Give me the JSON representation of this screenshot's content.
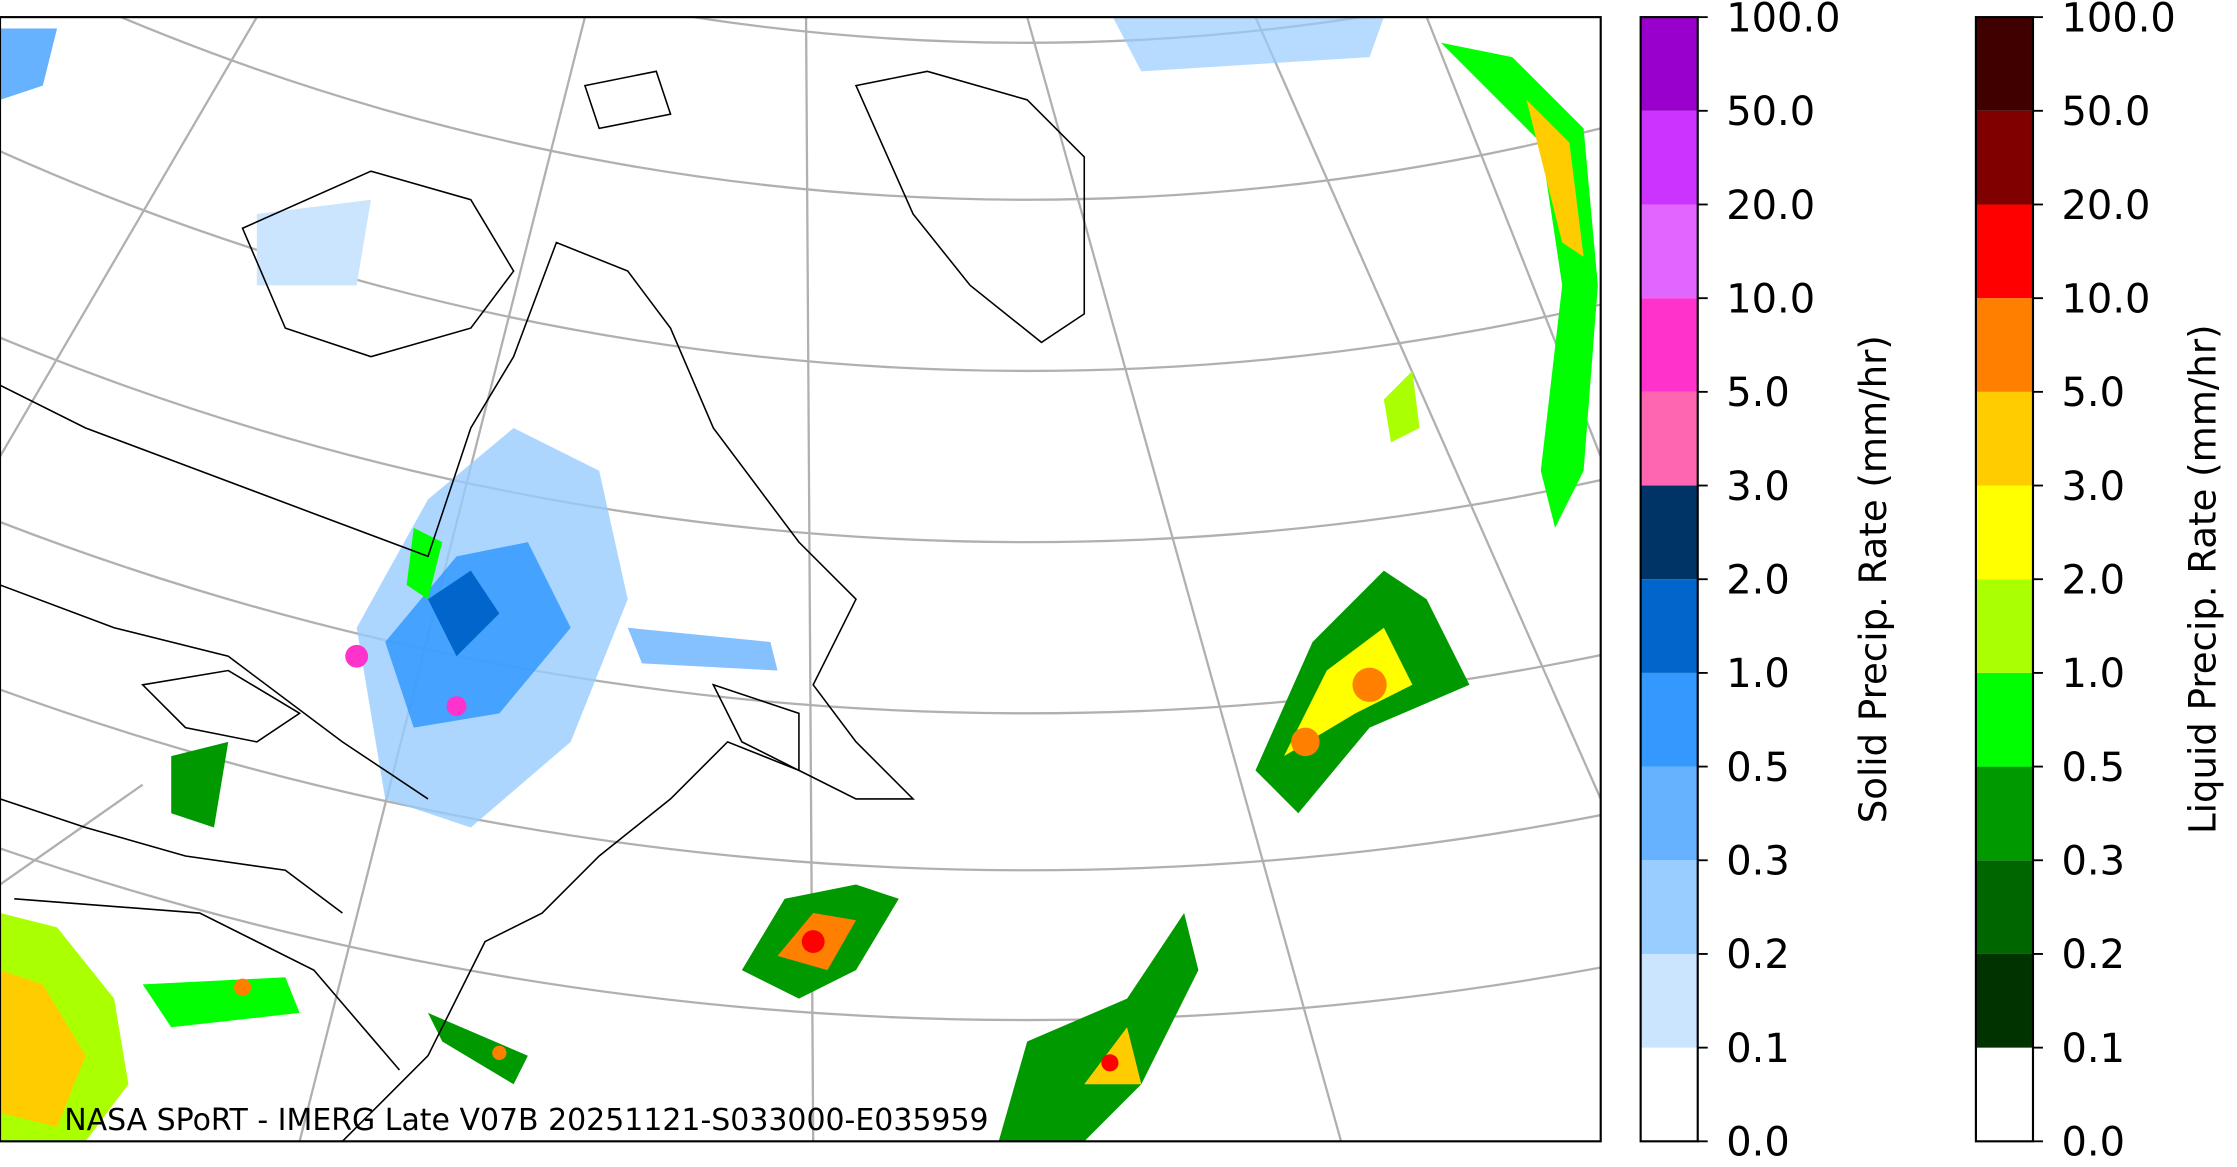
{
  "annotation": "NASA SPoRT - IMERG Late V07B 20251121-S033000-E035959",
  "colorbars": [
    {
      "label": "Solid Precip. Rate (mm/hr)",
      "ticks": [
        {
          "value": 0,
          "label": "0.0"
        },
        {
          "value": 0.1,
          "label": "0.1"
        },
        {
          "value": 0.2,
          "label": "0.2"
        },
        {
          "value": 0.3,
          "label": "0.3"
        },
        {
          "value": 0.5,
          "label": "0.5"
        },
        {
          "value": 1,
          "label": "1.0"
        },
        {
          "value": 2,
          "label": "2.0"
        },
        {
          "value": 3,
          "label": "3.0"
        },
        {
          "value": 5,
          "label": "5.0"
        },
        {
          "value": 10,
          "label": "10.0"
        },
        {
          "value": 20,
          "label": "20.0"
        },
        {
          "value": 50,
          "label": "50.0"
        },
        {
          "value": 100,
          "label": "100.0"
        }
      ],
      "colors": [
        "#ffffff",
        "#cce5ff",
        "#99ccff",
        "#66b2ff",
        "#3399ff",
        "#0066cc",
        "#003366",
        "#ff66b2",
        "#ff33cc",
        "#e066ff",
        "#cc33ff",
        "#9900cc"
      ]
    },
    {
      "label": "Liquid Precip. Rate (mm/hr)",
      "ticks": [
        {
          "value": 0,
          "label": "0.0"
        },
        {
          "value": 0.1,
          "label": "0.1"
        },
        {
          "value": 0.2,
          "label": "0.2"
        },
        {
          "value": 0.3,
          "label": "0.3"
        },
        {
          "value": 0.5,
          "label": "0.5"
        },
        {
          "value": 1,
          "label": "1.0"
        },
        {
          "value": 2,
          "label": "2.0"
        },
        {
          "value": 3,
          "label": "3.0"
        },
        {
          "value": 5,
          "label": "5.0"
        },
        {
          "value": 10,
          "label": "10.0"
        },
        {
          "value": 20,
          "label": "20.0"
        },
        {
          "value": 50,
          "label": "50.0"
        },
        {
          "value": 100,
          "label": "100.0"
        }
      ],
      "colors": [
        "#ffffff",
        "#003300",
        "#006600",
        "#009900",
        "#00ff00",
        "#aaff00",
        "#ffff00",
        "#ffcc00",
        "#ff8000",
        "#ff0000",
        "#800000",
        "#400000"
      ]
    }
  ]
}
